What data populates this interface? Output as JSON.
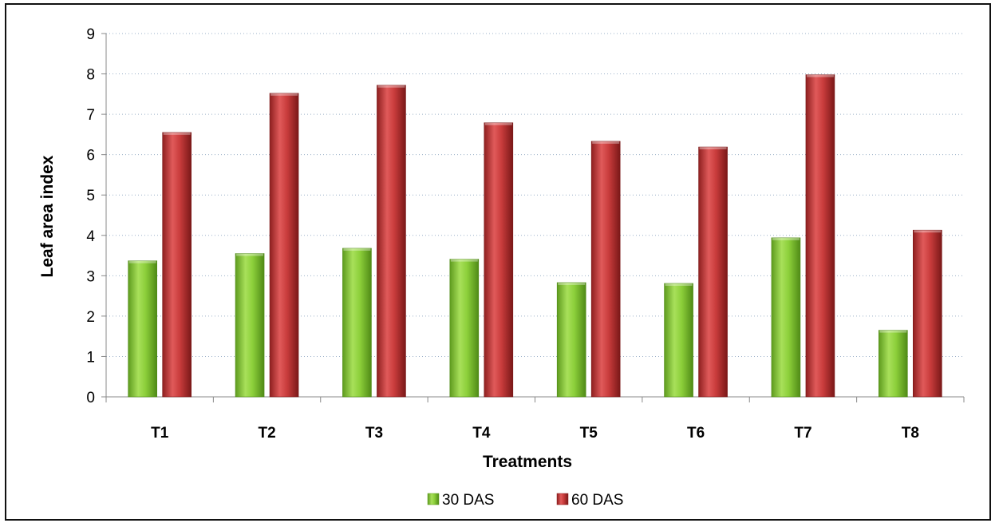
{
  "chart_data": {
    "type": "bar",
    "categories": [
      "T1",
      "T2",
      "T3",
      "T4",
      "T5",
      "T6",
      "T7",
      "T8"
    ],
    "series": [
      {
        "name": "30 DAS",
        "values": [
          3.37,
          3.55,
          3.68,
          3.41,
          2.83,
          2.81,
          3.94,
          1.65
        ],
        "color": "#8ccf3a"
      },
      {
        "name": "60 DAS",
        "values": [
          6.55,
          7.52,
          7.72,
          6.79,
          6.33,
          6.19,
          7.98,
          4.13
        ],
        "color": "#c93c3c"
      }
    ],
    "title": "",
    "xlabel": "Treatments",
    "ylabel": "Leaf area index",
    "ylim": [
      0,
      9
    ],
    "yticks": [
      0,
      1,
      2,
      3,
      4,
      5,
      6,
      7,
      8,
      9
    ],
    "grid": true,
    "legend_position": "bottom"
  }
}
